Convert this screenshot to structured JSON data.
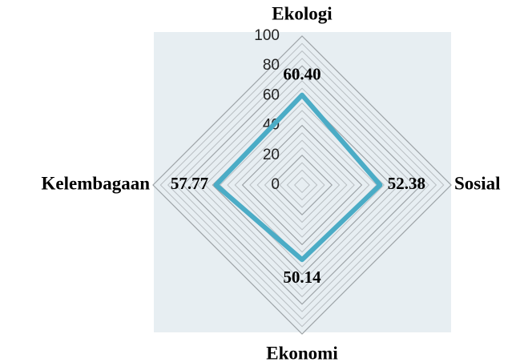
{
  "chart_data": {
    "type": "radar",
    "categories": [
      "Ekologi",
      "Sosial",
      "Ekonomi",
      "Kelembagaan"
    ],
    "values": [
      60.4,
      52.38,
      50.14,
      57.77
    ],
    "value_labels": [
      "60.40",
      "52.38",
      "50.14",
      "57.77"
    ],
    "color": "#4bacc6",
    "ylim": [
      0,
      100
    ],
    "yticks": [
      0,
      20,
      40,
      60,
      80,
      100
    ],
    "grid": true
  }
}
